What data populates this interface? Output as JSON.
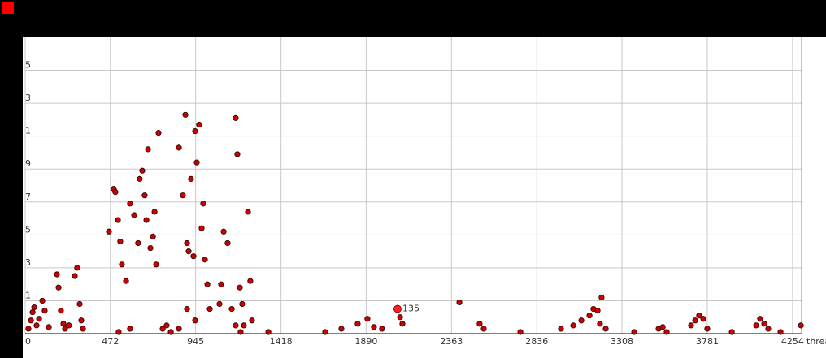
{
  "chart_data": {
    "type": "scatter",
    "xlabel": "threa",
    "xlim": [
      0,
      4304
    ],
    "ylim": [
      -1,
      17
    ],
    "xticks": [
      0,
      472,
      945,
      1418,
      1890,
      2363,
      2836,
      3308,
      3781,
      4254
    ],
    "yticks": [
      1,
      3,
      5,
      7,
      9,
      {
        "value": 11,
        "label": "1"
      },
      {
        "value": 13,
        "label": "3"
      },
      {
        "value": 15,
        "label": "5"
      }
    ],
    "grid": true,
    "color": "#cc0000",
    "x": [
      18,
      32,
      41,
      50,
      63,
      77,
      95,
      108,
      176,
      198,
      212,
      221,
      275,
      288,
      302,
      311,
      320,
      243,
      185,
      131,
      464,
      491,
      500,
      514,
      527,
      536,
      559,
      581,
      604,
      626,
      635,
      649,
      662,
      672,
      681,
      694,
      708,
      717,
      726,
      739,
      581,
      518,
      762,
      784,
      852,
      874,
      888,
      897,
      906,
      919,
      933,
      942,
      951,
      964,
      978,
      987,
      996,
      1010,
      897,
      942,
      852,
      807,
      1023,
      1077,
      1100,
      1122,
      1145,
      1167,
      1176,
      1190,
      1203,
      1212,
      1235,
      1248,
      1257,
      1167,
      1194,
      1086,
      1348,
      1663,
      1753,
      1843,
      1897,
      1933,
      1978,
      2078,
      2091,
      2407,
      2519,
      2542,
      2745,
      2970,
      3038,
      3083,
      3128,
      3150,
      3173,
      3195,
      3186,
      3218,
      3376,
      3511,
      3534,
      3556,
      3691,
      3714,
      3736,
      3759,
      3781,
      3917,
      4052,
      4074,
      4097,
      4119,
      4187,
      4300
    ],
    "y": [
      -0.7,
      -0.2,
      0.3,
      0.6,
      -0.5,
      -0.1,
      1.0,
      0.4,
      2.6,
      0.4,
      -0.4,
      -0.7,
      2.5,
      3.0,
      0.8,
      -0.2,
      -0.7,
      -0.5,
      1.8,
      -0.6,
      5.2,
      7.8,
      7.6,
      5.9,
      4.6,
      3.2,
      2.2,
      6.9,
      6.2,
      4.5,
      8.4,
      8.9,
      7.4,
      5.9,
      10.2,
      4.2,
      4.9,
      6.4,
      3.2,
      11.2,
      -0.7,
      -0.9,
      -0.7,
      -0.5,
      10.3,
      7.4,
      12.3,
      4.5,
      4.0,
      8.4,
      3.7,
      11.3,
      9.4,
      11.7,
      5.4,
      6.9,
      3.5,
      2.0,
      0.5,
      -0.2,
      -0.7,
      -0.9,
      0.5,
      0.8,
      5.2,
      4.5,
      0.5,
      12.1,
      9.9,
      1.8,
      0.8,
      -0.5,
      6.4,
      2.2,
      -0.2,
      -0.5,
      -0.9,
      2.0,
      -0.9,
      -0.9,
      -0.7,
      -0.4,
      -0.1,
      -0.6,
      -0.7,
      0.0,
      -0.4,
      0.9,
      -0.4,
      -0.7,
      -0.9,
      -0.7,
      -0.5,
      -0.2,
      0.1,
      0.5,
      0.4,
      1.2,
      -0.4,
      -0.7,
      -0.9,
      -0.7,
      -0.6,
      -0.9,
      -0.5,
      -0.2,
      0.1,
      -0.1,
      -0.7,
      -0.9,
      -0.5,
      -0.1,
      -0.4,
      -0.7,
      -0.9,
      -0.5
    ],
    "annotations": [
      {
        "text": "135",
        "x": 2064,
        "y": 0.5
      }
    ]
  }
}
